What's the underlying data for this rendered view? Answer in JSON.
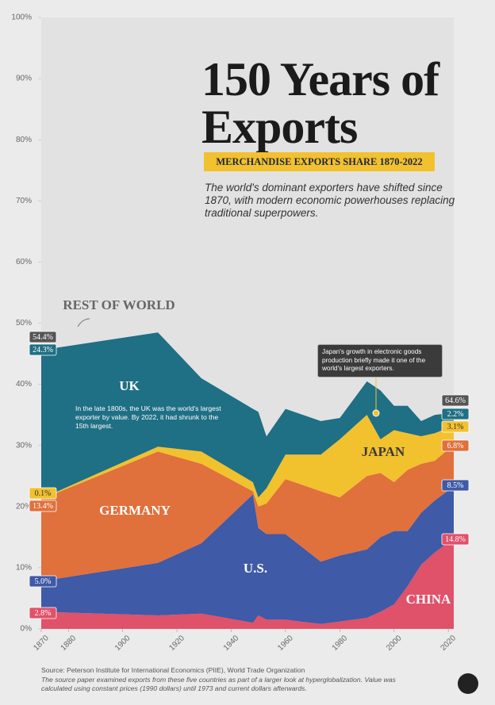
{
  "chart_data": {
    "type": "stacked-area",
    "title": "150 Years of Exports",
    "subtitle": "MERCHANDISE EXPORTS SHARE 1870-2022",
    "description": "The world's dominant exporters have shifted since 1870, with modern economic powerhouses replacing traditional superpowers.",
    "x": [
      1870,
      1913,
      1929,
      1948,
      1950,
      1953,
      1960,
      1973,
      1980,
      1990,
      1995,
      2000,
      2005,
      2010,
      2015,
      2022
    ],
    "xlim": [
      1870,
      2022
    ],
    "xticks": [
      1870,
      1880,
      1900,
      1920,
      1940,
      1960,
      1980,
      2000,
      2020
    ],
    "ylim": [
      0,
      100
    ],
    "yticks": [
      {
        "value": 0,
        "label": "0%"
      },
      {
        "value": 10,
        "label": "10%"
      },
      {
        "value": 20,
        "label": "20%"
      },
      {
        "value": 30,
        "label": "30%"
      },
      {
        "value": 40,
        "label": "40%"
      },
      {
        "value": 50,
        "label": "50%"
      },
      {
        "value": 60,
        "label": "60%"
      },
      {
        "value": 70,
        "label": "70%"
      },
      {
        "value": 80,
        "label": "80%"
      },
      {
        "value": 90,
        "label": "90%"
      },
      {
        "value": 100,
        "label": "100%"
      }
    ],
    "grid": false,
    "series": [
      {
        "name": "CHINA",
        "color": "#e0516a",
        "values": [
          2.8,
          2.2,
          2.5,
          1.0,
          2.2,
          1.5,
          1.5,
          0.8,
          1.2,
          1.8,
          2.8,
          4.0,
          7.0,
          10.5,
          12.5,
          14.8
        ],
        "value_labels": [
          "2.8%",
          null,
          null,
          null,
          null,
          null,
          null,
          null,
          null,
          null,
          null,
          null,
          null,
          null,
          null,
          "14.8%"
        ]
      },
      {
        "name": "U.S.",
        "color": "#3f5aa6",
        "values": [
          5.0,
          8.6,
          11.5,
          21.0,
          14.3,
          14.0,
          14.0,
          10.2,
          10.8,
          11.2,
          12.2,
          12.0,
          9.0,
          8.5,
          8.5,
          8.5
        ],
        "value_labels": [
          "5.0%",
          null,
          null,
          null,
          null,
          null,
          null,
          null,
          null,
          null,
          null,
          null,
          null,
          null,
          null,
          "8.5%"
        ]
      },
      {
        "name": "GERMANY",
        "color": "#e0703c",
        "values": [
          13.4,
          18.2,
          13.0,
          0.5,
          3.5,
          5.0,
          9.0,
          11.5,
          9.5,
          12.0,
          10.5,
          8.0,
          10.0,
          8.0,
          6.5,
          6.8
        ],
        "value_labels": [
          "13.4%",
          null,
          null,
          null,
          null,
          null,
          null,
          null,
          null,
          null,
          null,
          null,
          null,
          null,
          null,
          "6.8%"
        ]
      },
      {
        "name": "JAPAN",
        "color": "#f2c12e",
        "values": [
          0.1,
          0.8,
          2.0,
          1.5,
          1.5,
          2.5,
          4.0,
          6.0,
          9.5,
          10.0,
          5.5,
          8.5,
          6.0,
          4.5,
          4.5,
          3.1
        ],
        "value_labels": [
          "0.1%",
          null,
          null,
          null,
          null,
          null,
          null,
          null,
          null,
          null,
          null,
          null,
          null,
          null,
          null,
          "3.1%"
        ]
      },
      {
        "name": "UK",
        "color": "#1f6f85",
        "values": [
          24.3,
          18.7,
          12.0,
          12.0,
          14.0,
          8.5,
          7.5,
          5.5,
          3.5,
          5.5,
          8.0,
          4.0,
          4.5,
          2.5,
          3.0,
          2.2
        ],
        "value_labels": [
          "24.3%",
          null,
          null,
          null,
          null,
          null,
          null,
          null,
          null,
          null,
          null,
          null,
          null,
          null,
          null,
          "2.2%"
        ]
      },
      {
        "name": "REST OF WORLD",
        "color": "#e2e2e2",
        "values": [
          54.4,
          51.5,
          59.0,
          64.0,
          64.5,
          68.5,
          64.0,
          66.0,
          65.5,
          59.5,
          61.0,
          63.5,
          63.5,
          66.0,
          65.0,
          64.6
        ],
        "value_labels": [
          "54.4%",
          null,
          null,
          null,
          null,
          null,
          null,
          null,
          null,
          null,
          null,
          null,
          null,
          null,
          null,
          "64.6%"
        ]
      }
    ],
    "annotations": [
      "In the late 1800s, the UK was the world's largest exporter by value. By 2022, it had shrunk to the 15th largest.",
      "Japan's growth in electronic goods production briefly made it one of the world's largest exporters."
    ],
    "source": "Source: Peterson Institute for International Economics (PIIE), World Trade Organization",
    "note": "The source paper examined exports from these five countries as part of a larger look at hyperglobalization. Value was calculated using constant prices (1990 dollars) until 1973 and current dollars afterwards."
  }
}
